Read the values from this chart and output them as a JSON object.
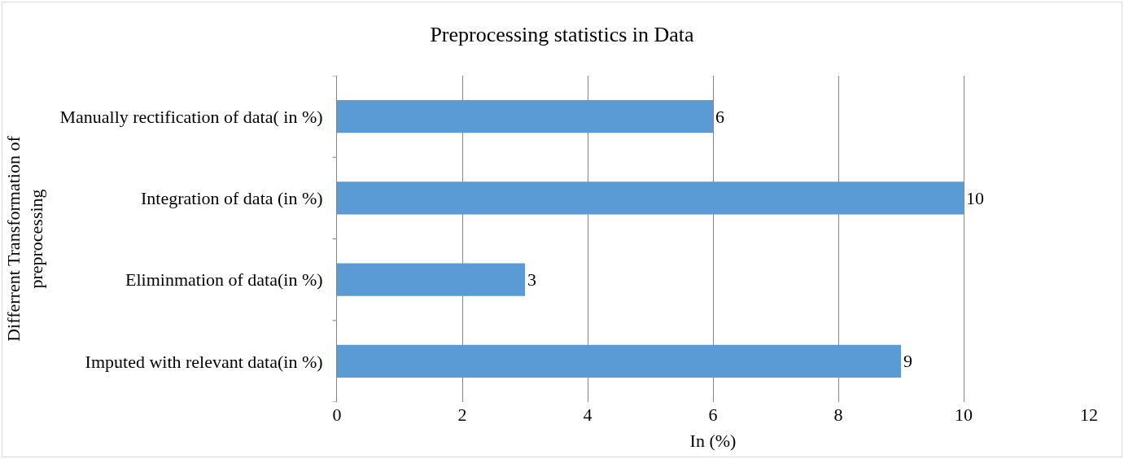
{
  "chart_data": {
    "type": "bar",
    "orientation": "horizontal",
    "title": "Preprocessing statistics in Data",
    "xlabel": "In (%)",
    "ylabel": "Differrent Transformation of preprocessing",
    "categories": [
      "Manually rectification of data( in %)",
      "Integration of data (in %)",
      "Eliminmation of data(in %)",
      "Imputed with relevant data(in %)"
    ],
    "values": [
      6,
      10,
      3,
      9
    ],
    "color": "#5b9bd5",
    "xlim": [
      0,
      12
    ],
    "xticks": [
      0,
      2,
      4,
      6,
      8,
      10,
      12
    ],
    "grid": "x",
    "data_labels": true,
    "legend": false
  }
}
